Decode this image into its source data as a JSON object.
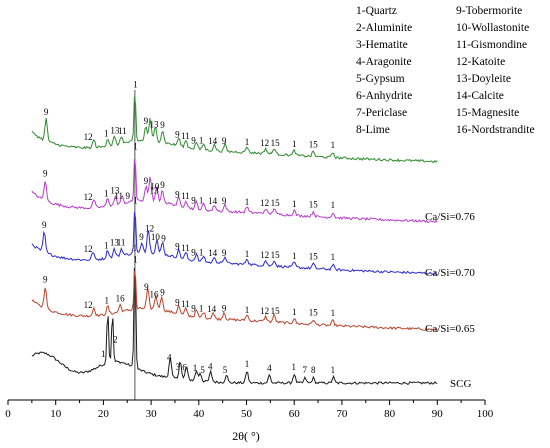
{
  "chart_data": {
    "type": "line",
    "title": "",
    "xlabel": "2θ( °)",
    "ylabel": "",
    "xlim": [
      0,
      100
    ],
    "x_ticks": [
      0,
      10,
      20,
      30,
      40,
      50,
      60,
      70,
      80,
      90,
      100
    ],
    "grid": false,
    "reference_line_x": 26.6,
    "legend": {
      "placement": "top-right",
      "entries": [
        "1-Quartz",
        "2-Aluminite",
        "3-Hematite",
        "4-Aragonite",
        "5-Gypsum",
        "6-Anhydrite",
        "7-Periclase",
        "8-Lime",
        "9-Tobermorite",
        "10-Wollastonite",
        "11-Gismondine",
        "12-Katoite",
        "13-Doyleite",
        "14-Calcite",
        "15-Magnesite",
        "16-Nordstrandite"
      ]
    },
    "series": [
      {
        "name": "SCG",
        "color": "#1a1a1a",
        "peaks": [
          [
            20.9,
            55
          ],
          [
            21.9,
            50
          ],
          [
            26.6,
            118
          ],
          [
            34.0,
            20
          ],
          [
            36.1,
            18
          ],
          [
            37.4,
            13
          ],
          [
            39.5,
            10
          ],
          [
            40.3,
            8
          ],
          [
            42.5,
            10
          ],
          [
            45.8,
            8
          ],
          [
            50.1,
            12
          ],
          [
            54.8,
            8
          ],
          [
            60.0,
            9
          ],
          [
            62.3,
            5
          ],
          [
            64.0,
            5
          ],
          [
            68.2,
            6
          ]
        ],
        "annotations": [
          {
            "text": "1",
            "x": 20.0
          },
          {
            "text": "2",
            "x": 22.5
          },
          {
            "text": "1",
            "x": 26.6
          },
          {
            "text": "4",
            "x": 33.8
          },
          {
            "text": "3",
            "x": 35.6
          },
          {
            "text": "6",
            "x": 37.0
          },
          {
            "text": "1",
            "x": 39.2
          },
          {
            "text": "5",
            "x": 40.8
          },
          {
            "text": "4",
            "x": 42.4
          },
          {
            "text": "5",
            "x": 45.5
          },
          {
            "text": "1",
            "x": 50.1
          },
          {
            "text": "4",
            "x": 54.8
          },
          {
            "text": "1",
            "x": 59.9
          },
          {
            "text": "7",
            "x": 62.2
          },
          {
            "text": "8",
            "x": 64.0
          },
          {
            "text": "1",
            "x": 68.1
          }
        ]
      },
      {
        "name": "Ca/Si=0.65",
        "color": "#b5452f",
        "peaks": [
          [
            7.8,
            22
          ],
          [
            18.0,
            8
          ],
          [
            20.9,
            8
          ],
          [
            23.5,
            7
          ],
          [
            26.6,
            45
          ],
          [
            29.3,
            20
          ],
          [
            31.0,
            14
          ],
          [
            32.2,
            14
          ],
          [
            35.8,
            8
          ],
          [
            37.3,
            7
          ],
          [
            39.5,
            7
          ],
          [
            41.0,
            6
          ],
          [
            43.0,
            6
          ],
          [
            45.3,
            7
          ],
          [
            50.1,
            6
          ],
          [
            54.0,
            5
          ],
          [
            55.8,
            7
          ],
          [
            60.0,
            5
          ],
          [
            64.0,
            5
          ],
          [
            68.1,
            5
          ]
        ],
        "annotations": [
          {
            "text": "9",
            "x": 7.8
          },
          {
            "text": "12",
            "x": 16.8
          },
          {
            "text": "1",
            "x": 20.7
          },
          {
            "text": "16",
            "x": 23.5
          },
          {
            "text": "1",
            "x": 26.7
          },
          {
            "text": "9",
            "x": 29.0
          },
          {
            "text": "16",
            "x": 30.6
          },
          {
            "text": "9",
            "x": 32.4
          },
          {
            "text": "9",
            "x": 35.5
          },
          {
            "text": "11",
            "x": 37.2
          },
          {
            "text": "9",
            "x": 38.9
          },
          {
            "text": "1",
            "x": 40.5
          },
          {
            "text": "14",
            "x": 42.7
          },
          {
            "text": "9",
            "x": 45.3
          },
          {
            "text": "1",
            "x": 50.1
          },
          {
            "text": "12",
            "x": 53.8
          },
          {
            "text": "15",
            "x": 56.0
          },
          {
            "text": "1",
            "x": 60.0
          },
          {
            "text": "15",
            "x": 64.0
          },
          {
            "text": "1",
            "x": 68.1
          }
        ]
      },
      {
        "name": "Ca/Si=0.70",
        "color": "#2a2ad0",
        "peaks": [
          [
            7.6,
            20
          ],
          [
            17.8,
            8
          ],
          [
            20.9,
            8
          ],
          [
            22.3,
            8
          ],
          [
            23.8,
            7
          ],
          [
            26.6,
            48
          ],
          [
            28.1,
            10
          ],
          [
            29.4,
            24
          ],
          [
            31.2,
            14
          ],
          [
            32.4,
            12
          ],
          [
            35.8,
            8
          ],
          [
            37.3,
            7
          ],
          [
            39.5,
            7
          ],
          [
            41.0,
            6
          ],
          [
            43.3,
            6
          ],
          [
            45.5,
            7
          ],
          [
            50.1,
            6
          ],
          [
            54.0,
            5
          ],
          [
            55.8,
            6
          ],
          [
            60.0,
            5
          ],
          [
            64.0,
            5
          ],
          [
            68.1,
            5
          ]
        ],
        "annotations": [
          {
            "text": "9",
            "x": 7.6
          },
          {
            "text": "12",
            "x": 16.8
          },
          {
            "text": "1",
            "x": 20.6
          },
          {
            "text": "13",
            "x": 22.3
          },
          {
            "text": "11",
            "x": 23.7
          },
          {
            "text": "1",
            "x": 26.7
          },
          {
            "text": "9",
            "x": 28.0
          },
          {
            "text": "12",
            "x": 29.7
          },
          {
            "text": "10",
            "x": 30.9
          },
          {
            "text": "9",
            "x": 32.6
          },
          {
            "text": "9",
            "x": 35.5
          },
          {
            "text": "11",
            "x": 37.2
          },
          {
            "text": "9",
            "x": 38.9
          },
          {
            "text": "1",
            "x": 40.5
          },
          {
            "text": "14",
            "x": 42.9
          },
          {
            "text": "9",
            "x": 45.3
          },
          {
            "text": "1",
            "x": 50.1
          },
          {
            "text": "12",
            "x": 53.8
          },
          {
            "text": "15",
            "x": 56.0
          },
          {
            "text": "1",
            "x": 60.0
          },
          {
            "text": "15",
            "x": 64.0
          },
          {
            "text": "1",
            "x": 68.1
          }
        ]
      },
      {
        "name": "Ca/Si=0.76",
        "color": "#b43cc8",
        "peaks": [
          [
            7.8,
            20
          ],
          [
            18.0,
            8
          ],
          [
            20.9,
            8
          ],
          [
            22.5,
            8
          ],
          [
            23.9,
            7
          ],
          [
            26.6,
            50
          ],
          [
            28.9,
            14
          ],
          [
            29.8,
            24
          ],
          [
            31.2,
            14
          ],
          [
            32.4,
            12
          ],
          [
            35.8,
            8
          ],
          [
            37.3,
            7
          ],
          [
            39.5,
            7
          ],
          [
            41.0,
            6
          ],
          [
            43.3,
            6
          ],
          [
            45.5,
            7
          ],
          [
            50.1,
            6
          ],
          [
            54.0,
            5
          ],
          [
            55.8,
            6
          ],
          [
            60.0,
            5
          ],
          [
            64.0,
            5
          ],
          [
            68.1,
            5
          ]
        ],
        "annotations": [
          {
            "text": "9",
            "x": 7.8
          },
          {
            "text": "12",
            "x": 16.8
          },
          {
            "text": "1",
            "x": 20.6
          },
          {
            "text": "13",
            "x": 22.4
          },
          {
            "text": "11",
            "x": 23.2
          },
          {
            "text": "9",
            "x": 25.1
          },
          {
            "text": "1",
            "x": 26.7
          },
          {
            "text": "9",
            "x": 28.9
          },
          {
            "text": "13",
            "x": 30.6
          },
          {
            "text": "10",
            "x": 30.8
          },
          {
            "text": "9",
            "x": 32.4
          },
          {
            "text": "9",
            "x": 35.5
          },
          {
            "text": "11",
            "x": 37.2
          },
          {
            "text": "9",
            "x": 38.9
          },
          {
            "text": "1",
            "x": 40.5
          },
          {
            "text": "14",
            "x": 42.9
          },
          {
            "text": "9",
            "x": 45.3
          },
          {
            "text": "1",
            "x": 50.1
          },
          {
            "text": "12",
            "x": 53.8
          },
          {
            "text": "15",
            "x": 56.0
          },
          {
            "text": "1",
            "x": 60.0
          },
          {
            "text": "15",
            "x": 64.0
          },
          {
            "text": "1",
            "x": 68.1
          }
        ]
      },
      {
        "name": "",
        "color": "#2e8b2e",
        "peaks": [
          [
            8.0,
            22
          ],
          [
            18.0,
            8
          ],
          [
            20.9,
            8
          ],
          [
            22.3,
            8
          ],
          [
            23.8,
            7
          ],
          [
            26.6,
            52
          ],
          [
            28.9,
            14
          ],
          [
            29.8,
            22
          ],
          [
            30.9,
            14
          ],
          [
            32.4,
            12
          ],
          [
            35.8,
            8
          ],
          [
            37.3,
            7
          ],
          [
            39.5,
            7
          ],
          [
            41.0,
            6
          ],
          [
            43.3,
            6
          ],
          [
            45.5,
            7
          ],
          [
            50.1,
            6
          ],
          [
            54.0,
            5
          ],
          [
            55.8,
            6
          ],
          [
            60.0,
            5
          ],
          [
            64.0,
            5
          ],
          [
            68.1,
            5
          ]
        ],
        "annotations": [
          {
            "text": "9",
            "x": 8.0
          },
          {
            "text": "12",
            "x": 16.8
          },
          {
            "text": "1",
            "x": 20.6
          },
          {
            "text": "13",
            "x": 22.4
          },
          {
            "text": "11",
            "x": 24.0
          },
          {
            "text": "1",
            "x": 26.7
          },
          {
            "text": "9",
            "x": 28.9
          },
          {
            "text": "13",
            "x": 30.6
          },
          {
            "text": "9",
            "x": 32.4
          },
          {
            "text": "9",
            "x": 35.5
          },
          {
            "text": "11",
            "x": 37.2
          },
          {
            "text": "9",
            "x": 38.9
          },
          {
            "text": "1",
            "x": 40.5
          },
          {
            "text": "14",
            "x": 42.9
          },
          {
            "text": "9",
            "x": 45.3
          },
          {
            "text": "1",
            "x": 50.1
          },
          {
            "text": "12",
            "x": 53.8
          },
          {
            "text": "15",
            "x": 56.0
          },
          {
            "text": "1",
            "x": 60.0
          },
          {
            "text": "15",
            "x": 64.0
          },
          {
            "text": "1",
            "x": 68.1
          }
        ]
      }
    ]
  }
}
